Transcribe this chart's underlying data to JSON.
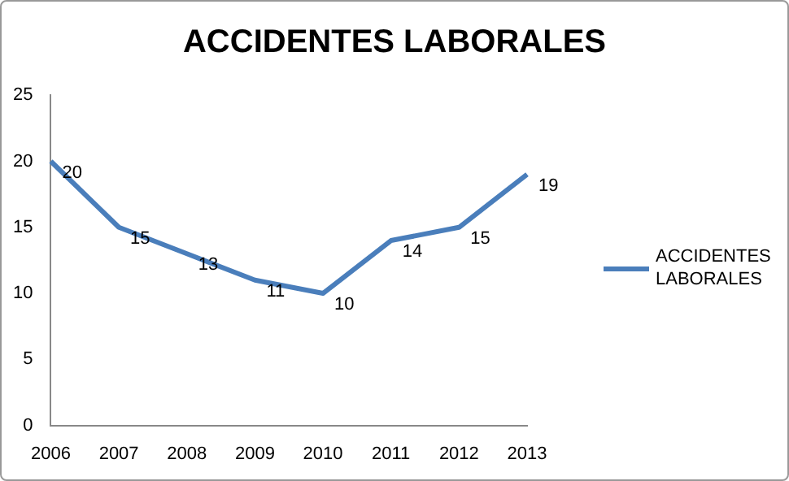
{
  "chart_data": {
    "type": "line",
    "title": "ACCIDENTES LABORALES",
    "categories": [
      "2006",
      "2007",
      "2008",
      "2009",
      "2010",
      "2011",
      "2012",
      "2013"
    ],
    "series": [
      {
        "name": "ACCIDENTES LABORALES",
        "color": "#4a7ebb",
        "values": [
          20,
          15,
          13,
          11,
          10,
          14,
          15,
          19
        ]
      }
    ],
    "ylim": [
      0,
      25
    ],
    "yticks": [
      0,
      5,
      10,
      15,
      20,
      25
    ],
    "grid": false,
    "legend": "right",
    "data_labels": true,
    "marker": "none",
    "line_style": "solid"
  }
}
